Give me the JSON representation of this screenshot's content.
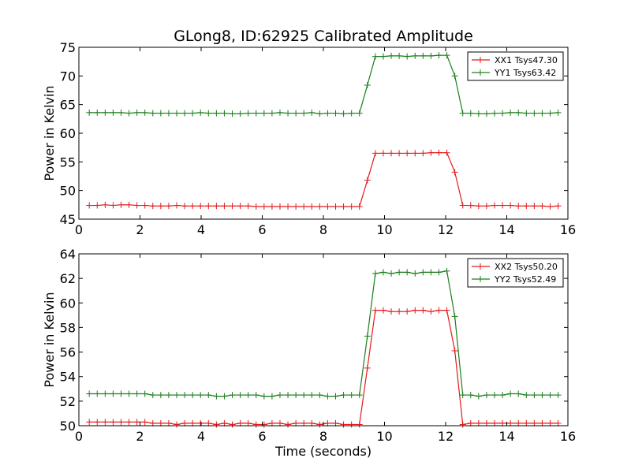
{
  "title": "GLong8, ID:62925 Calibrated Amplitude",
  "chart_data": [
    {
      "type": "line",
      "title": "GLong8, ID:62925 Calibrated Amplitude",
      "xlabel": "",
      "ylabel": "Power in Kelvin",
      "xlim": [
        0,
        16
      ],
      "ylim": [
        45,
        75
      ],
      "xticks": [
        "0",
        "2",
        "4",
        "6",
        "8",
        "10",
        "12",
        "14",
        "16"
      ],
      "yticks": [
        "45",
        "50",
        "55",
        "60",
        "65",
        "70",
        "75"
      ],
      "grid": false,
      "legend_position": "top-right",
      "x": [
        0.34,
        0.6,
        0.86,
        1.12,
        1.38,
        1.64,
        1.9,
        2.16,
        2.42,
        2.68,
        2.94,
        3.2,
        3.46,
        3.72,
        3.98,
        4.24,
        4.5,
        4.76,
        5.02,
        5.28,
        5.54,
        5.8,
        6.06,
        6.32,
        6.58,
        6.84,
        7.1,
        7.36,
        7.62,
        7.88,
        8.14,
        8.4,
        8.66,
        8.92,
        9.18,
        9.44,
        9.7,
        9.96,
        10.22,
        10.48,
        10.74,
        11.0,
        11.26,
        11.52,
        11.78,
        12.04,
        12.3,
        12.56,
        12.82,
        13.08,
        13.34,
        13.6,
        13.86,
        14.12,
        14.38,
        14.64,
        14.9,
        15.16,
        15.42,
        15.68
      ],
      "series": [
        {
          "name": "XX1 Tsys47.30",
          "color": "#e41a1c",
          "values": [
            47.4,
            47.4,
            47.5,
            47.4,
            47.5,
            47.5,
            47.4,
            47.4,
            47.3,
            47.3,
            47.3,
            47.4,
            47.3,
            47.3,
            47.3,
            47.3,
            47.3,
            47.3,
            47.3,
            47.3,
            47.3,
            47.2,
            47.2,
            47.2,
            47.2,
            47.2,
            47.2,
            47.2,
            47.2,
            47.2,
            47.2,
            47.2,
            47.2,
            47.2,
            47.2,
            51.8,
            56.5,
            56.5,
            56.5,
            56.5,
            56.5,
            56.5,
            56.5,
            56.6,
            56.6,
            56.6,
            53.2,
            47.4,
            47.4,
            47.3,
            47.3,
            47.4,
            47.4,
            47.4,
            47.3,
            47.3,
            47.3,
            47.3,
            47.2,
            47.3
          ]
        },
        {
          "name": "YY1 Tsys63.42",
          "color": "#1a7f1a",
          "values": [
            63.6,
            63.6,
            63.6,
            63.6,
            63.6,
            63.5,
            63.6,
            63.6,
            63.5,
            63.5,
            63.5,
            63.5,
            63.5,
            63.5,
            63.6,
            63.5,
            63.5,
            63.5,
            63.4,
            63.4,
            63.5,
            63.5,
            63.5,
            63.5,
            63.6,
            63.5,
            63.5,
            63.5,
            63.6,
            63.4,
            63.5,
            63.5,
            63.4,
            63.5,
            63.5,
            68.4,
            73.4,
            73.4,
            73.5,
            73.5,
            73.4,
            73.5,
            73.5,
            73.5,
            73.6,
            73.6,
            70.0,
            63.5,
            63.5,
            63.4,
            63.4,
            63.5,
            63.5,
            63.6,
            63.6,
            63.5,
            63.5,
            63.5,
            63.5,
            63.6
          ]
        }
      ]
    },
    {
      "type": "line",
      "title": "",
      "xlabel": "Time (seconds)",
      "ylabel": "Power in Kelvin",
      "xlim": [
        0,
        16
      ],
      "ylim": [
        50,
        64
      ],
      "xticks": [
        "0",
        "2",
        "4",
        "6",
        "8",
        "10",
        "12",
        "14",
        "16"
      ],
      "yticks": [
        "50",
        "52",
        "54",
        "56",
        "58",
        "60",
        "62",
        "64"
      ],
      "grid": false,
      "legend_position": "top-right",
      "x": [
        0.34,
        0.6,
        0.86,
        1.12,
        1.38,
        1.64,
        1.9,
        2.16,
        2.42,
        2.68,
        2.94,
        3.2,
        3.46,
        3.72,
        3.98,
        4.24,
        4.5,
        4.76,
        5.02,
        5.28,
        5.54,
        5.8,
        6.06,
        6.32,
        6.58,
        6.84,
        7.1,
        7.36,
        7.62,
        7.88,
        8.14,
        8.4,
        8.66,
        8.92,
        9.18,
        9.44,
        9.7,
        9.96,
        10.22,
        10.48,
        10.74,
        11.0,
        11.26,
        11.52,
        11.78,
        12.04,
        12.3,
        12.56,
        12.82,
        13.08,
        13.34,
        13.6,
        13.86,
        14.12,
        14.38,
        14.64,
        14.9,
        15.16,
        15.42,
        15.68
      ],
      "series": [
        {
          "name": "XX2 Tsys50.20",
          "color": "#e41a1c",
          "values": [
            50.3,
            50.3,
            50.3,
            50.3,
            50.3,
            50.3,
            50.3,
            50.3,
            50.2,
            50.2,
            50.2,
            50.1,
            50.2,
            50.2,
            50.2,
            50.2,
            50.1,
            50.2,
            50.1,
            50.2,
            50.2,
            50.1,
            50.1,
            50.2,
            50.2,
            50.1,
            50.2,
            50.2,
            50.2,
            50.1,
            50.2,
            50.2,
            50.1,
            50.1,
            50.1,
            54.7,
            59.4,
            59.4,
            59.3,
            59.3,
            59.3,
            59.4,
            59.4,
            59.3,
            59.4,
            59.4,
            56.1,
            50.1,
            50.2,
            50.2,
            50.2,
            50.2,
            50.2,
            50.2,
            50.2,
            50.2,
            50.2,
            50.2,
            50.2,
            50.2
          ]
        },
        {
          "name": "YY2 Tsys52.49",
          "color": "#1a7f1a",
          "values": [
            52.6,
            52.6,
            52.6,
            52.6,
            52.6,
            52.6,
            52.6,
            52.6,
            52.5,
            52.5,
            52.5,
            52.5,
            52.5,
            52.5,
            52.5,
            52.5,
            52.4,
            52.4,
            52.5,
            52.5,
            52.5,
            52.5,
            52.4,
            52.4,
            52.5,
            52.5,
            52.5,
            52.5,
            52.5,
            52.5,
            52.4,
            52.4,
            52.5,
            52.5,
            52.5,
            57.3,
            62.4,
            62.5,
            62.4,
            62.5,
            62.5,
            62.4,
            62.5,
            62.5,
            62.5,
            62.6,
            58.9,
            52.5,
            52.5,
            52.4,
            52.5,
            52.5,
            52.5,
            52.6,
            52.6,
            52.5,
            52.5,
            52.5,
            52.5,
            52.5
          ]
        }
      ]
    }
  ]
}
